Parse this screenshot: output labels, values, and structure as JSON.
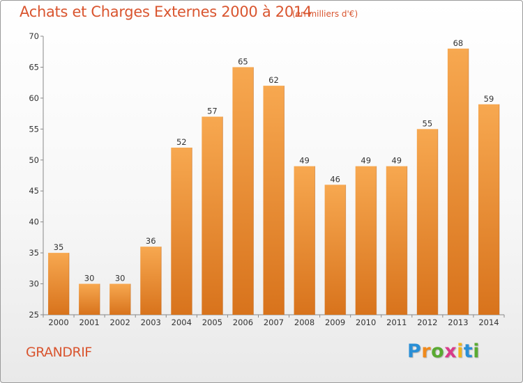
{
  "chart_data": {
    "type": "bar",
    "title": "Achats et Charges Externes 2000 à 2014",
    "subtitle": "(en milliers d'€)",
    "xlabel": "",
    "ylabel": "",
    "categories": [
      "2000",
      "2001",
      "2002",
      "2003",
      "2004",
      "2005",
      "2006",
      "2007",
      "2008",
      "2009",
      "2010",
      "2011",
      "2012",
      "2013",
      "2014"
    ],
    "values": [
      35,
      30,
      30,
      36,
      52,
      57,
      65,
      62,
      49,
      46,
      49,
      49,
      55,
      68,
      59
    ],
    "ylim": [
      25,
      70
    ],
    "yticks": [
      25,
      30,
      35,
      40,
      45,
      50,
      55,
      60,
      65,
      70
    ],
    "grid": false,
    "bar_color_light": "#f7a850",
    "bar_color_dark": "#d8731c"
  },
  "location": "GRANDRIF",
  "logo": {
    "text": "Proxiti",
    "letters": [
      "P",
      "r",
      "o",
      "x",
      "i",
      "t",
      "i"
    ],
    "colors": [
      "#2a8fd6",
      "#f08a1c",
      "#5aaa32",
      "#d93a8a",
      "#f0b41c",
      "#2a8fd6",
      "#5aaa32"
    ]
  }
}
